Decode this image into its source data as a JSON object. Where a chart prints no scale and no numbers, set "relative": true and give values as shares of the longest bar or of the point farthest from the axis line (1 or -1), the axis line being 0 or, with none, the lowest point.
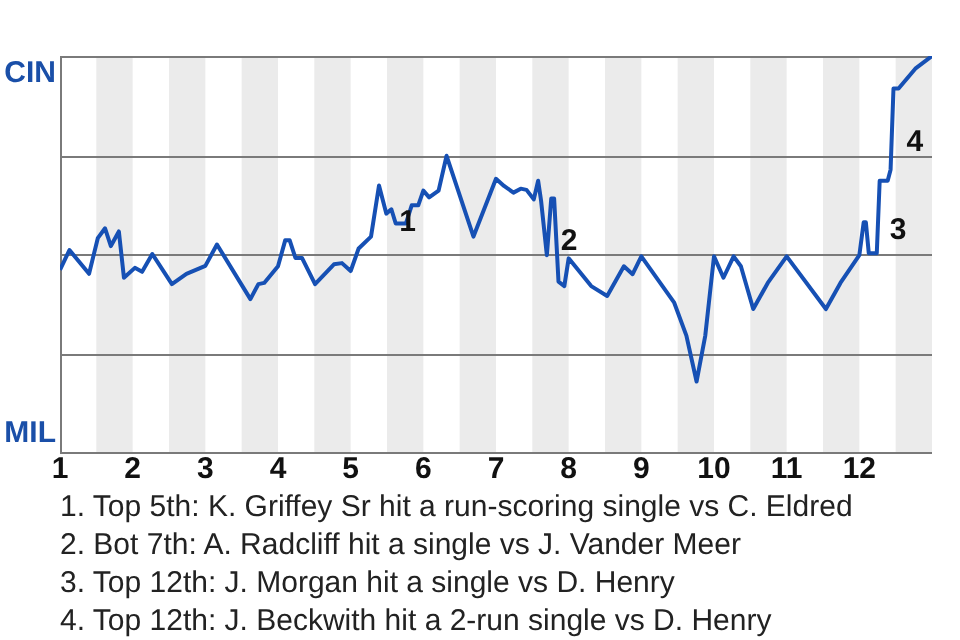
{
  "chart_data": {
    "type": "line",
    "relative": true,
    "x": [
      1.0,
      1.13,
      1.4,
      1.52,
      1.62,
      1.7,
      1.81,
      1.88,
      2.03,
      2.13,
      2.27,
      2.54,
      2.74,
      3.0,
      3.16,
      3.62,
      3.73,
      3.81,
      4.0,
      4.1,
      4.16,
      4.24,
      4.33,
      4.51,
      4.77,
      4.88,
      5.0,
      5.11,
      5.28,
      5.39,
      5.49,
      5.56,
      5.62,
      5.76,
      5.84,
      5.93,
      6.0,
      6.08,
      6.21,
      6.32,
      6.69,
      7.0,
      7.11,
      7.24,
      7.34,
      7.42,
      7.52,
      7.58,
      7.62,
      7.7,
      7.76,
      7.8,
      7.86,
      7.94,
      8.0,
      8.31,
      8.53,
      8.76,
      8.88,
      9.0,
      9.45,
      9.62,
      9.76,
      9.88,
      10.0,
      10.13,
      10.27,
      10.37,
      10.54,
      10.74,
      11.0,
      11.54,
      11.74,
      12.0,
      12.06,
      12.09,
      12.13,
      12.24,
      12.28,
      12.39,
      12.43,
      12.47,
      12.54,
      12.77,
      13.0
    ],
    "series": [
      {
        "color": "#1650b4",
        "values": [
          0.46,
          0.51,
          0.45,
          0.54,
          0.565,
          0.52,
          0.557,
          0.44,
          0.465,
          0.455,
          0.5,
          0.424,
          0.45,
          0.47,
          0.524,
          0.386,
          0.424,
          0.427,
          0.469,
          0.535,
          0.535,
          0.49,
          0.49,
          0.424,
          0.474,
          0.477,
          0.457,
          0.514,
          0.544,
          0.673,
          0.602,
          0.613,
          0.577,
          0.577,
          0.623,
          0.623,
          0.66,
          0.643,
          0.66,
          0.748,
          0.544,
          0.69,
          0.672,
          0.655,
          0.665,
          0.662,
          0.638,
          0.685,
          0.635,
          0.497,
          0.64,
          0.64,
          0.43,
          0.419,
          0.489,
          0.419,
          0.394,
          0.469,
          0.449,
          0.494,
          0.378,
          0.294,
          0.178,
          0.294,
          0.494,
          0.44,
          0.494,
          0.469,
          0.361,
          0.427,
          0.494,
          0.361,
          0.427,
          0.497,
          0.58,
          0.58,
          0.502,
          0.502,
          0.685,
          0.685,
          0.713,
          0.918,
          0.918,
          0.968,
          1
        ]
      }
    ],
    "xlim": [
      1,
      13
    ],
    "xticks": [
      1,
      2,
      3,
      4,
      5,
      6,
      7,
      8,
      9,
      10,
      11,
      12
    ],
    "marker": "none",
    "line_style": "solid",
    "ref_lines": [
      {
        "axis": "y",
        "value": 0.25,
        "color": "#7a7a7a"
      },
      {
        "axis": "y",
        "value": 0.5,
        "color": "#7a7a7a"
      },
      {
        "axis": "y",
        "value": 0.75,
        "color": "#7a7a7a"
      },
      {
        "axis": "y",
        "value": 1,
        "color": "#7a7a7a"
      }
    ],
    "bands": [
      {
        "axis": "x",
        "from": 1.5,
        "to": 2,
        "color": "#ebebeb"
      },
      {
        "axis": "x",
        "from": 2.5,
        "to": 3,
        "color": "#ebebeb"
      },
      {
        "axis": "x",
        "from": 3.5,
        "to": 4,
        "color": "#ebebeb"
      },
      {
        "axis": "x",
        "from": 4.5,
        "to": 5,
        "color": "#ebebeb"
      },
      {
        "axis": "x",
        "from": 5.5,
        "to": 6,
        "color": "#ebebeb"
      },
      {
        "axis": "x",
        "from": 6.5,
        "to": 7,
        "color": "#ebebeb"
      },
      {
        "axis": "x",
        "from": 7.5,
        "to": 8,
        "color": "#ebebeb"
      },
      {
        "axis": "x",
        "from": 8.5,
        "to": 9,
        "color": "#ebebeb"
      },
      {
        "axis": "x",
        "from": 9.5,
        "to": 10,
        "color": "#ebebeb"
      },
      {
        "axis": "x",
        "from": 10.5,
        "to": 11,
        "color": "#ebebeb"
      },
      {
        "axis": "x",
        "from": 11.5,
        "to": 12,
        "color": "#ebebeb"
      },
      {
        "axis": "x",
        "from": 12.5,
        "to": 13,
        "color": "#ebebeb"
      }
    ],
    "annotations": [
      "CIN",
      "MIL",
      {
        "text": "1",
        "x": 5.56,
        "y": 0.58
      },
      {
        "text": "2",
        "x": 7.78,
        "y": 0.53
      },
      {
        "text": "3",
        "x": 12.31,
        "y": 0.56
      },
      {
        "text": "4",
        "x": 12.54,
        "y": 0.78
      },
      "1. Top 5th: K. Griffey Sr hit a run-scoring single vs C. Eldred",
      "2. Bot 7th: A. Radcliff hit a single vs J. Vander Meer",
      "3. Top 12th: J. Morgan hit a single vs D. Henry",
      "4. Top 12th: J. Beckwith hit a 2-run single vs D. Henry"
    ]
  }
}
